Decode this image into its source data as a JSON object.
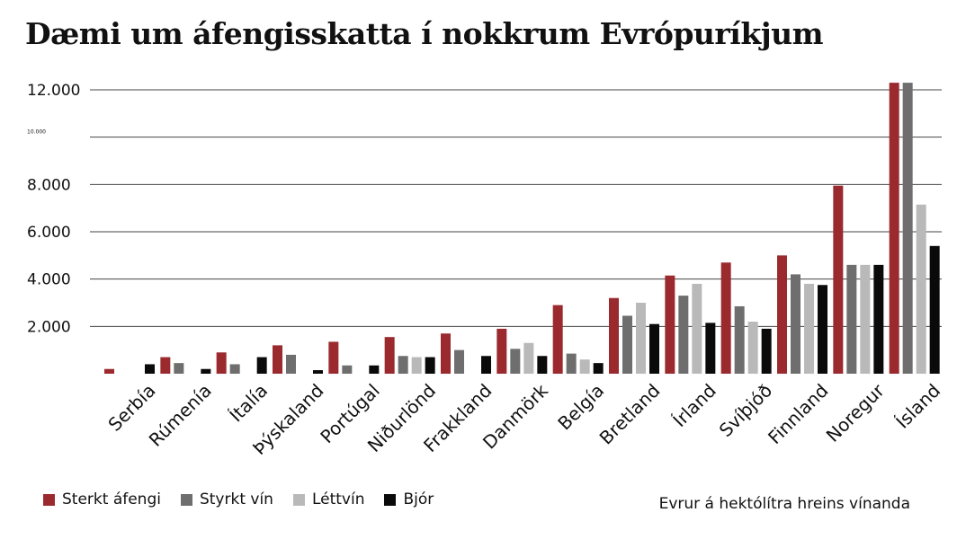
{
  "chart_data": {
    "type": "bar",
    "title": "Dæmi um áfengisskatta í nokkrum Evrópuríkjum",
    "unit_note": "Evrur á hektólítra hreins vínanda",
    "ylim": [
      0,
      12000
    ],
    "yticks": [
      {
        "value": 12000,
        "label": "12.000",
        "small": false
      },
      {
        "value": 10000,
        "label": "10.000",
        "small": true
      },
      {
        "value": 8000,
        "label": "8.000",
        "small": false
      },
      {
        "value": 6000,
        "label": "6.000",
        "small": false
      },
      {
        "value": 4000,
        "label": "4.000",
        "small": false
      },
      {
        "value": 2000,
        "label": "2.000",
        "small": false
      }
    ],
    "categories": [
      "Serbía",
      "Rúmenía",
      "Ítalía",
      "Þýskaland",
      "Portúgal",
      "Niðurlönd",
      "Frakkland",
      "Danmörk",
      "Belgía",
      "Bretland",
      "Írland",
      "Svíþjóð",
      "Finnland",
      "Noregur",
      "Ísland"
    ],
    "series": [
      {
        "name": "Sterkt áfengi",
        "color": "#9b2a2f",
        "values": [
          200,
          700,
          900,
          1200,
          1350,
          1550,
          1700,
          1900,
          2900,
          3200,
          4150,
          4700,
          5000,
          7950,
          12300
        ]
      },
      {
        "name": "Styrkt vín",
        "color": "#6e6e6e",
        "values": [
          0,
          450,
          400,
          800,
          350,
          750,
          1000,
          1050,
          850,
          2450,
          3300,
          2850,
          4200,
          4600,
          12300
        ]
      },
      {
        "name": "Léttvín",
        "color": "#b9b9b9",
        "values": [
          0,
          0,
          0,
          0,
          0,
          700,
          0,
          1300,
          600,
          3000,
          3800,
          2200,
          3800,
          4600,
          7150
        ]
      },
      {
        "name": "Bjór",
        "color": "#0a0a0a",
        "values": [
          400,
          200,
          700,
          150,
          350,
          700,
          750,
          750,
          450,
          2100,
          2150,
          1900,
          3750,
          4600,
          5400
        ]
      }
    ]
  }
}
